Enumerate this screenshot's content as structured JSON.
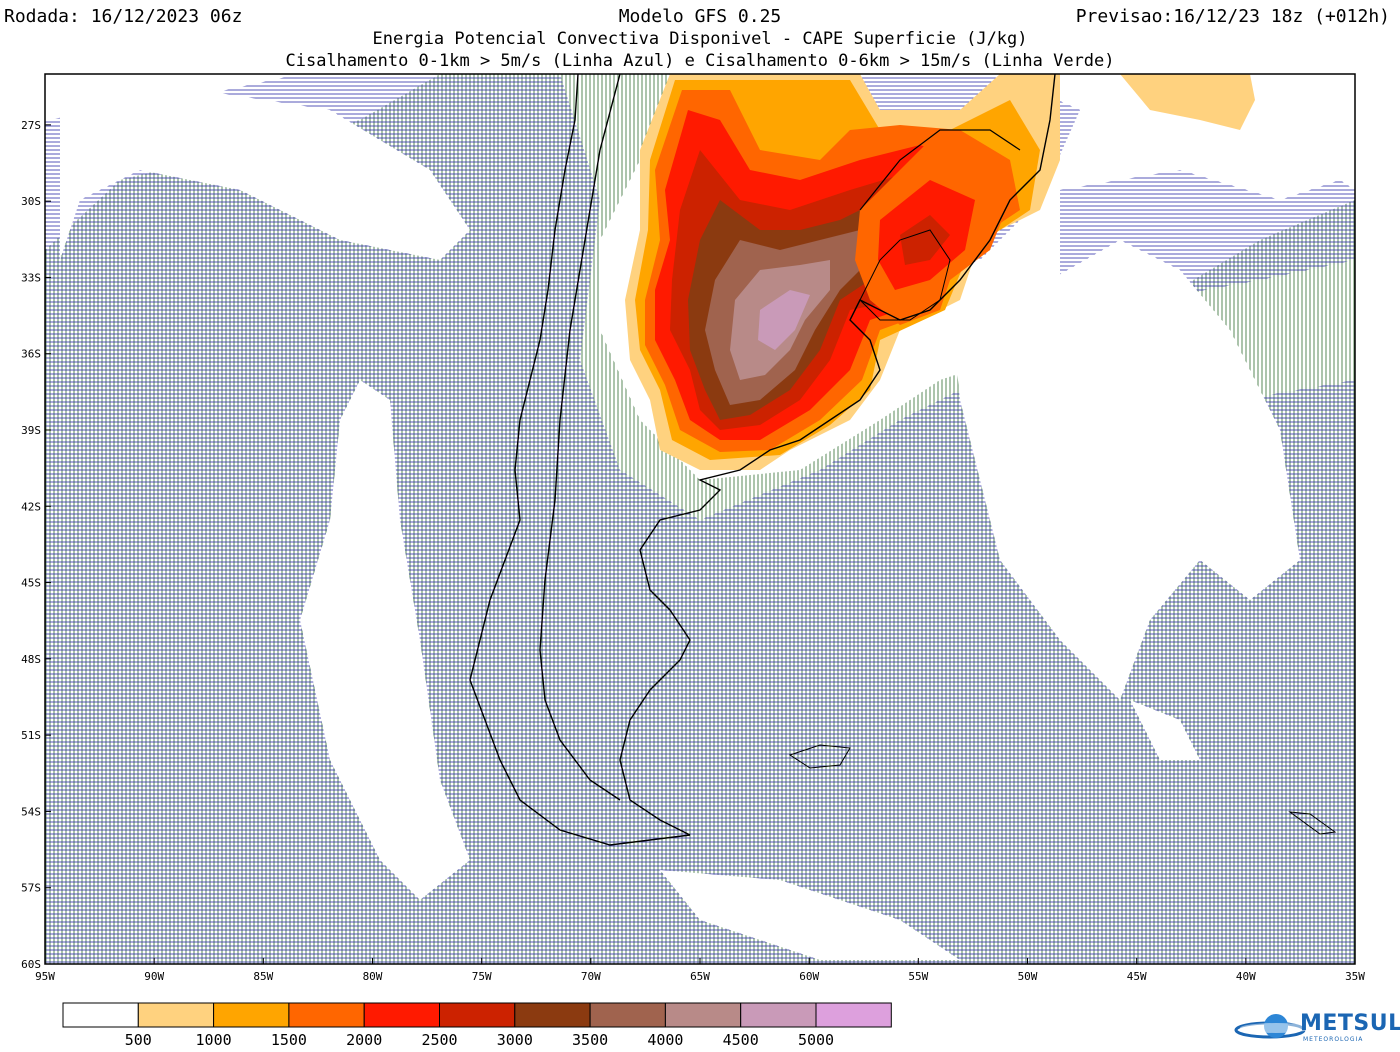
{
  "header": {
    "run": "Rodada: 16/12/2023 06z",
    "model": "Modelo GFS 0.25",
    "forecast": "Previsao:16/12/23 18z (+012h)",
    "subtitle1": "Energia Potencial Convectiva Disponivel - CAPE Superficie (J/kg)",
    "subtitle2": "Cisalhamento 0-1km > 5m/s (Linha Azul) e Cisalhamento 0-6km > 15m/s (Linha Verde)"
  },
  "map": {
    "lon_range": [
      -95,
      -35
    ],
    "lat_range": [
      -60,
      -25
    ],
    "lon_ticks": [
      "95W",
      "90W",
      "85W",
      "80W",
      "75W",
      "70W",
      "65W",
      "60W",
      "55W",
      "50W",
      "45W",
      "40W",
      "35W"
    ],
    "lat_ticks": [
      "27S",
      "30S",
      "33S",
      "36S",
      "39S",
      "42S",
      "45S",
      "48S",
      "51S",
      "54S",
      "57S",
      "60S"
    ],
    "hatch_colors": {
      "shear_0_1km": "#2b2ba8",
      "shear_0_6km": "#2f6b2f"
    }
  },
  "colorbar": {
    "labels": [
      "500",
      "1000",
      "1500",
      "2000",
      "2500",
      "3000",
      "3500",
      "4000",
      "4500",
      "5000"
    ],
    "colors": [
      "#ffffff",
      "#ffd27f",
      "#ffa500",
      "#ff6600",
      "#ff1a00",
      "#cc2200",
      "#8b3a10",
      "#a0634e",
      "#b88a88",
      "#c99ab8",
      "#dda0dd"
    ]
  },
  "logo": {
    "text": "METSUL",
    "subtext": "METEOROLOGIA"
  }
}
